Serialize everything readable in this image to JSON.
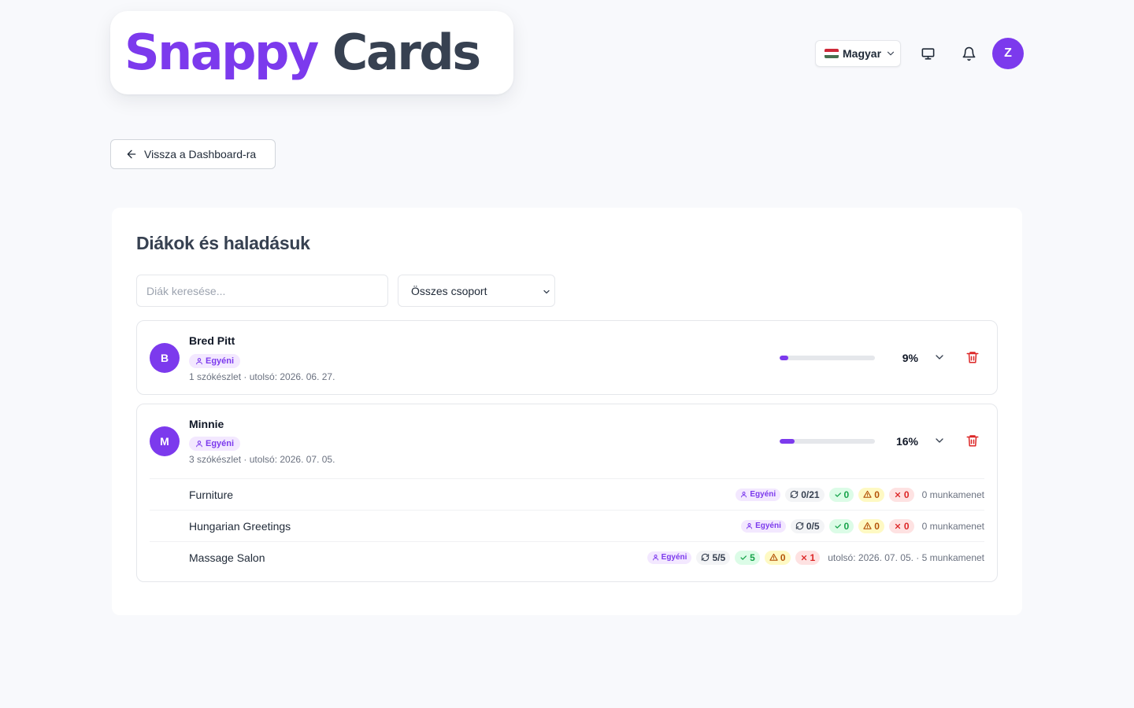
{
  "brand": {
    "part1": "Snappy",
    "part2": "Cards"
  },
  "header": {
    "language_label": "Magyar",
    "flag_colors": [
      "#ce2939",
      "#ffffff",
      "#477050"
    ],
    "user_initial": "Z"
  },
  "back_button_label": "Vissza a Dashboard-ra",
  "panel": {
    "title": "Diákok és haladásuk",
    "search_placeholder": "Diák keresése...",
    "group_filter_value": "Összes csoport"
  },
  "students": [
    {
      "initial": "B",
      "name": "Bred Pitt",
      "badge": "Egyéni",
      "meta": "1 szókészlet · utolsó: 2026. 06. 27.",
      "progress": 0.09,
      "percent_label": "9%",
      "expanded": false,
      "decks": []
    },
    {
      "initial": "M",
      "name": "Minnie",
      "badge": "Egyéni",
      "meta": "3 szókészlet · utolsó: 2026. 07. 05.",
      "progress": 0.16,
      "percent_label": "16%",
      "expanded": true,
      "decks": [
        {
          "name": "Furniture",
          "badge": "Egyéni",
          "reviewed": "0/21",
          "correct": "0",
          "warn": "0",
          "wrong": "0",
          "info": "0 munkamenet"
        },
        {
          "name": "Hungarian Greetings",
          "badge": "Egyéni",
          "reviewed": "0/5",
          "correct": "0",
          "warn": "0",
          "wrong": "0",
          "info": "0 munkamenet"
        },
        {
          "name": "Massage Salon",
          "badge": "Egyéni",
          "reviewed": "5/5",
          "correct": "5",
          "warn": "0",
          "wrong": "1",
          "info": "utolsó: 2026. 07. 05. · 5 munkamenet"
        }
      ]
    }
  ],
  "colors": {
    "accent": "#7c3aed",
    "danger": "#dc2626",
    "success": "#16a34a",
    "warning": "#b45309"
  }
}
